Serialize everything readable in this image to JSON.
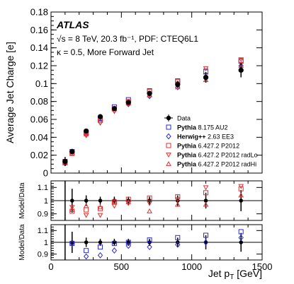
{
  "atlas": {
    "logo": "ATLAS",
    "line1": "√s = 8 TeV, 20.3 fb⁻¹, PDF: CTEQ6L1",
    "line2": "κ = 0.5, More Forward Jet"
  },
  "colors": {
    "data": "#000000",
    "au2": "#2a2ad6",
    "herwig": "#2a2ad6",
    "p2012": "#e03030"
  },
  "chart_data": [
    {
      "type": "scatter",
      "panel": "main",
      "ylabel": "Average Jet Charge [e]",
      "xlim": [
        0,
        1500
      ],
      "ylim": [
        0,
        0.18
      ],
      "yticks": [
        "0",
        "0.02",
        "0.04",
        "0.06",
        "0.08",
        "0.1",
        "0.12",
        "0.14",
        "0.16",
        "0.18"
      ],
      "x": [
        100,
        150,
        250,
        350,
        450,
        550,
        700,
        900,
        1100,
        1350
      ],
      "legend_position": "middle-right",
      "series": [
        {
          "name": "Data",
          "marker": "filled-circle",
          "color": "#000000",
          "values": [
            0.013,
            0.024,
            0.047,
            0.063,
            0.072,
            0.079,
            0.089,
            0.099,
            0.107,
            0.115
          ],
          "errors": [
            0.005,
            0.002,
            0.002,
            0.002,
            0.002,
            0.002,
            0.003,
            0.004,
            0.006,
            0.008
          ]
        },
        {
          "name": "Pythia 8.175 AU2",
          "marker": "open-square",
          "color": "#2a2ad6",
          "values": [
            0.013,
            0.024,
            0.045,
            0.061,
            0.074,
            0.082,
            0.092,
            0.103,
            0.113,
            0.125
          ]
        },
        {
          "name": "Herwig++ 2.63 EE3",
          "marker": "open-diamond",
          "color": "#2a2ad6",
          "values": [
            0.011,
            0.024,
            0.043,
            0.057,
            0.07,
            0.077,
            0.086,
            0.096,
            0.106,
            0.12
          ]
        },
        {
          "name": "Pythia 6.427.2 P2012",
          "marker": "open-square",
          "color": "#e03030",
          "values": [
            0.012,
            0.022,
            0.044,
            0.059,
            0.072,
            0.08,
            0.091,
            0.102,
            0.114,
            0.126
          ]
        },
        {
          "name": "Pythia 6.427.2 P2012 radLo",
          "marker": "open-triangle-down",
          "color": "#e03030",
          "values": [
            0.012,
            0.023,
            0.042,
            0.056,
            0.069,
            0.077,
            0.087,
            0.1,
            0.117,
            0.127
          ]
        },
        {
          "name": "Pythia 6.427.2 P2012 radHi",
          "marker": "open-triangle-up",
          "color": "#e03030",
          "values": [
            0.011,
            0.022,
            0.045,
            0.06,
            0.072,
            0.078,
            0.087,
            0.096,
            0.104,
            0.12
          ]
        }
      ]
    },
    {
      "type": "scatter",
      "panel": "ratio-pythia6",
      "ylabel": "Model/Data",
      "xlim": [
        0,
        1500
      ],
      "ylim": [
        0.85,
        1.15
      ],
      "yticks": [
        "0.9",
        "1",
        "1.1"
      ],
      "x": [
        150,
        250,
        350,
        450,
        550,
        700,
        900,
        1100,
        1350
      ],
      "data_errors": [
        0.09,
        0.04,
        0.03,
        0.03,
        0.03,
        0.03,
        0.04,
        0.06,
        0.08
      ],
      "series": [
        {
          "name": "Pythia 6.427.2 P2012",
          "marker": "open-square",
          "color": "#e03030",
          "values": [
            0.92,
            0.93,
            0.94,
            0.99,
            1.01,
            1.02,
            1.03,
            1.06,
            1.09
          ]
        },
        {
          "name": "Pythia 6.427.2 P2012 radLo",
          "marker": "open-triangle-down",
          "color": "#e03030",
          "values": [
            0.95,
            0.89,
            0.89,
            0.96,
            0.98,
            0.98,
            1.01,
            1.1,
            1.11
          ]
        },
        {
          "name": "Pythia 6.427.2 P2012 radHi",
          "marker": "open-triangle-up",
          "color": "#e03030",
          "values": [
            0.93,
            0.96,
            0.95,
            0.99,
            0.99,
            0.92,
            0.97,
            0.97,
            1.04
          ]
        }
      ]
    },
    {
      "type": "scatter",
      "panel": "ratio-pythia8-herwig",
      "ylabel": "Model/Data",
      "xlabel": "Jet p_T [GeV]",
      "xlim": [
        0,
        1500
      ],
      "ylim": [
        0.85,
        1.15
      ],
      "yticks": [
        "0.9",
        "1",
        "1.1"
      ],
      "xticks": [
        "0",
        "500",
        "1000",
        "1500"
      ],
      "x": [
        150,
        250,
        350,
        450,
        550,
        700,
        900,
        1100,
        1350
      ],
      "data_errors": [
        0.09,
        0.04,
        0.03,
        0.03,
        0.03,
        0.03,
        0.04,
        0.06,
        0.08
      ],
      "series": [
        {
          "name": "Pythia 8.175 AU2",
          "marker": "open-square",
          "color": "#2a2ad6",
          "values": [
            0.99,
            0.93,
            0.96,
            0.99,
            1.0,
            1.02,
            1.04,
            1.06,
            1.09
          ]
        },
        {
          "name": "Herwig++ 2.63 EE3",
          "marker": "open-diamond",
          "color": "#2a2ad6",
          "values": [
            0.99,
            0.88,
            0.89,
            0.93,
            0.97,
            0.96,
            0.98,
            1.0,
            1.04
          ]
        }
      ]
    }
  ]
}
